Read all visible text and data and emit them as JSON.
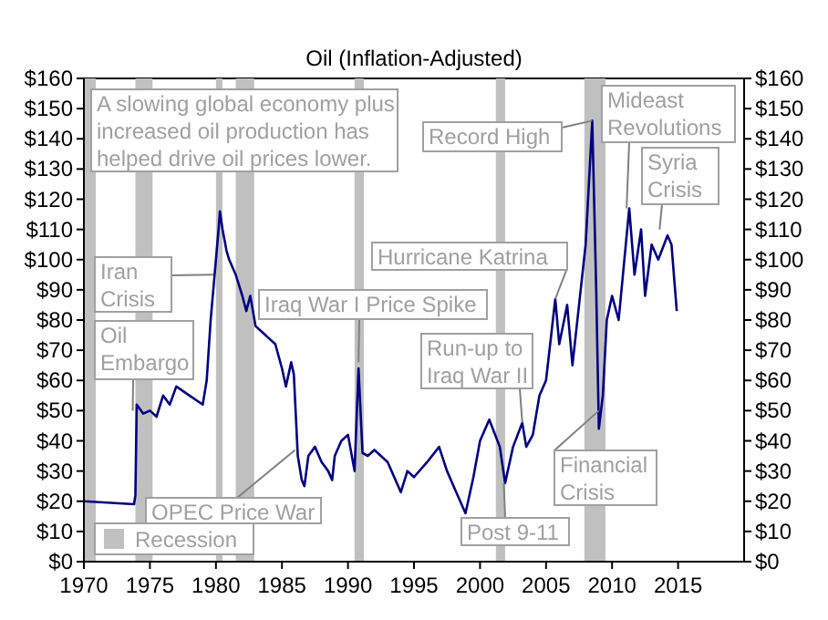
{
  "chart_data": {
    "type": "line",
    "title": "Oil (Inflation-Adjusted)",
    "x": [
      1970,
      1973.8,
      1973.9,
      1974.0,
      1974.5,
      1975,
      1975.5,
      1976,
      1976.5,
      1977,
      1978,
      1979,
      1979.3,
      1979.6,
      1979.9,
      1980.2,
      1980.3,
      1980.5,
      1980.8,
      1981,
      1981.5,
      1982,
      1982.3,
      1982.6,
      1983,
      1983.5,
      1984,
      1984.5,
      1985,
      1985.3,
      1985.7,
      1985.9,
      1986.2,
      1986.5,
      1986.7,
      1987,
      1987.5,
      1988,
      1988.5,
      1988.8,
      1989,
      1989.5,
      1990,
      1990.5,
      1990.8,
      1991.1,
      1991.5,
      1992,
      1993,
      1994,
      1994.5,
      1995,
      1996,
      1996.9,
      1997.5,
      1998,
      1998.9,
      1999.5,
      2000,
      2000.7,
      2001.5,
      2001.9,
      2002.5,
      2003.2,
      2003.5,
      2004,
      2004.5,
      2005,
      2005.7,
      2006,
      2006.6,
      2007,
      2007.5,
      2008.0,
      2008.5,
      2008.8,
      2009.0,
      2009.3,
      2009.6,
      2010,
      2010.5,
      2011.3,
      2011.7,
      2012.2,
      2012.5,
      2013,
      2013.5,
      2014.2,
      2014.5,
      2014.9
    ],
    "series": [
      {
        "color": "#000080",
        "values": [
          20,
          19,
          22,
          52,
          49,
          50,
          48,
          55,
          52,
          58,
          55,
          52,
          60,
          80,
          95,
          110,
          116,
          110,
          103,
          100,
          95,
          88,
          83,
          88,
          78,
          76,
          74,
          72,
          64,
          58,
          66,
          62,
          35,
          27,
          25,
          35,
          38,
          33,
          30,
          27,
          35,
          40,
          42,
          30,
          64,
          36,
          35,
          37,
          33,
          23,
          30,
          28,
          33,
          38,
          30,
          25,
          16,
          28,
          40,
          47,
          38,
          26,
          38,
          46,
          38,
          42,
          55,
          60,
          87,
          72,
          85,
          65,
          85,
          105,
          146,
          90,
          44,
          55,
          80,
          88,
          80,
          117,
          95,
          110,
          88,
          105,
          100,
          108,
          105,
          83
        ]
      }
    ],
    "xlim": [
      1970,
      2020
    ],
    "xticks": [
      1970,
      1975,
      1980,
      1985,
      1990,
      1995,
      2000,
      2005,
      2010,
      2015
    ],
    "ylim": [
      0,
      160
    ],
    "yticks": [
      {
        "value": 0,
        "label": "$0"
      },
      {
        "value": 10,
        "label": "$10"
      },
      {
        "value": 20,
        "label": "$20"
      },
      {
        "value": 30,
        "label": "$30"
      },
      {
        "value": 40,
        "label": "$40"
      },
      {
        "value": 50,
        "label": "$50"
      },
      {
        "value": 60,
        "label": "$60"
      },
      {
        "value": 70,
        "label": "$70"
      },
      {
        "value": 80,
        "label": "$80"
      },
      {
        "value": 90,
        "label": "$90"
      },
      {
        "value": 100,
        "label": "$100"
      },
      {
        "value": 110,
        "label": "$110"
      },
      {
        "value": 120,
        "label": "$120"
      },
      {
        "value": 130,
        "label": "$130"
      },
      {
        "value": 140,
        "label": "$140"
      },
      {
        "value": 150,
        "label": "$150"
      },
      {
        "value": 160,
        "label": "$160"
      }
    ],
    "y2lim": [
      0,
      160
    ],
    "y2ticks": [
      {
        "value": 0,
        "label": "$0"
      },
      {
        "value": 10,
        "label": "$10"
      },
      {
        "value": 20,
        "label": "$20"
      },
      {
        "value": 30,
        "label": "$30"
      },
      {
        "value": 40,
        "label": "$40"
      },
      {
        "value": 50,
        "label": "$50"
      },
      {
        "value": 60,
        "label": "$60"
      },
      {
        "value": 70,
        "label": "$70"
      },
      {
        "value": 80,
        "label": "$80"
      },
      {
        "value": 90,
        "label": "$90"
      },
      {
        "value": 100,
        "label": "$100"
      },
      {
        "value": 110,
        "label": "$110"
      },
      {
        "value": 120,
        "label": "$120"
      },
      {
        "value": 130,
        "label": "$130"
      },
      {
        "value": 140,
        "label": "$140"
      },
      {
        "value": 150,
        "label": "$150"
      },
      {
        "value": 160,
        "label": "$160"
      }
    ],
    "bands": [
      {
        "axis": "x",
        "from": 1969.9,
        "to": 1970.9,
        "label": "Recession",
        "color": "#c0c0c0"
      },
      {
        "axis": "x",
        "from": 1973.9,
        "to": 1975.2,
        "color": "#c0c0c0"
      },
      {
        "axis": "x",
        "from": 1980.0,
        "to": 1980.5,
        "color": "#c0c0c0"
      },
      {
        "axis": "x",
        "from": 1981.5,
        "to": 1982.9,
        "color": "#c0c0c0"
      },
      {
        "axis": "x",
        "from": 1990.5,
        "to": 1991.2,
        "color": "#c0c0c0"
      },
      {
        "axis": "x",
        "from": 2001.2,
        "to": 2001.9,
        "color": "#c0c0c0"
      },
      {
        "axis": "x",
        "from": 2007.9,
        "to": 2009.5,
        "color": "#c0c0c0"
      }
    ],
    "legend": "bottom left",
    "grid": false,
    "annotations": [
      "A slowing global economy plus increased oil production has helped drive oil prices lower.",
      {
        "text": "Iran Crisis",
        "x": 1979.8,
        "y": 95
      },
      {
        "text": "Oil Embargo",
        "x": 1973.7,
        "y": 50
      },
      {
        "text": "Iraq War I Price Spike",
        "x": 1990.8,
        "y": 66
      },
      {
        "text": "OPEC Price War",
        "x": 1986,
        "y": 37
      },
      {
        "text": "Hurricane Katrina",
        "x": 2005.7,
        "y": 87
      },
      {
        "text": "Run-up to Iraq War II",
        "x": 2003.2,
        "y": 46
      },
      {
        "text": "Post 9-11",
        "x": 2001.8,
        "y": 26
      },
      {
        "text": "Record High",
        "x": 2008.5,
        "y": 146
      },
      {
        "text": "Financial Crisis",
        "x": 2009,
        "y": 50
      },
      {
        "text": "Mideast Revolutions",
        "x": 2011.1,
        "y": 117
      },
      {
        "text": "Syria Crisis",
        "x": 2013.6,
        "y": 110
      }
    ]
  }
}
